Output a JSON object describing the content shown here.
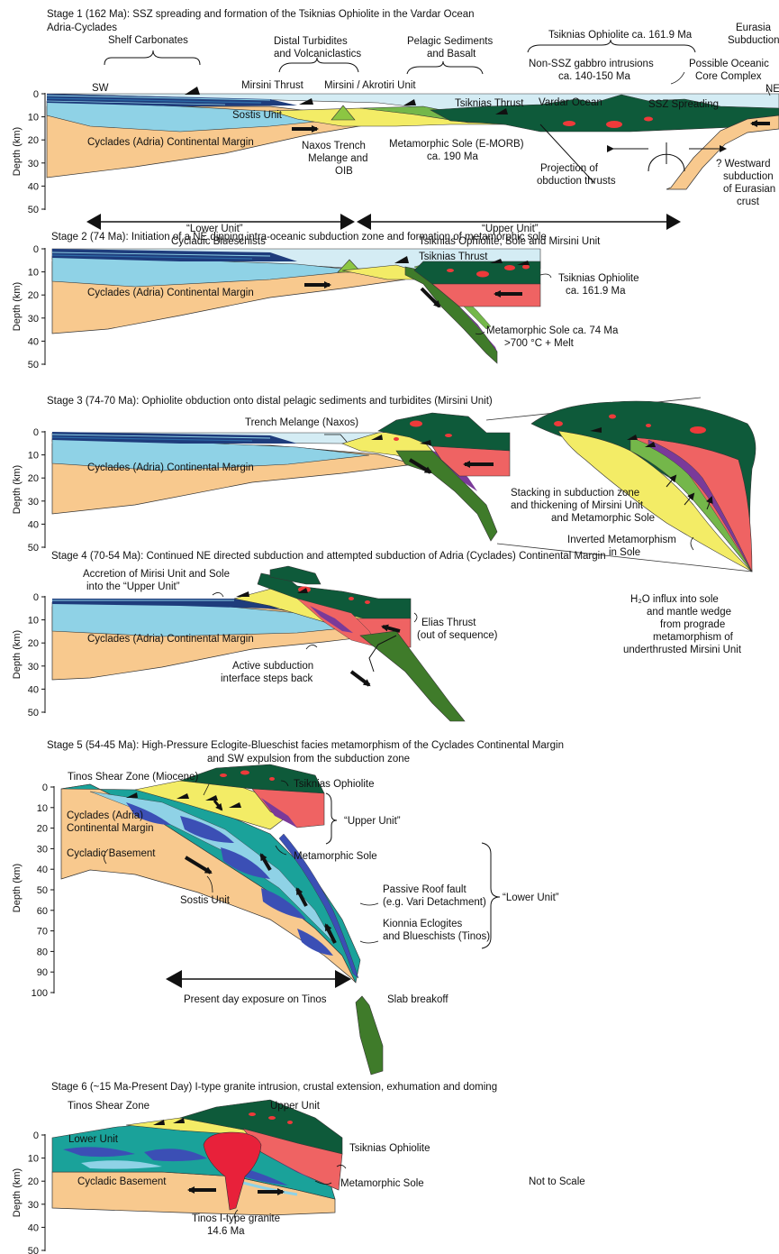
{
  "colors": {
    "ocean": "#d4ecf4",
    "margin": "#f8c98e",
    "shelf_dark": "#1e3c7c",
    "shelf_mid": "#2e6ba6",
    "sostis": "#8fd2e6",
    "turbidite": "#f3ec66",
    "sole": "#7a3a99",
    "ophiolite": "#0e5a3a",
    "mantle": "#ef6363",
    "slab": "#3f7b2a",
    "melange": "#8cc642",
    "green_sed": "#74b74a",
    "teal": "#1aa29a",
    "blueschist": "#3b4fb5",
    "granite": "#ee3a22",
    "magma": "#e8213a"
  },
  "axis": {
    "label": "Depth (km)",
    "ticks_shallow": [
      "0",
      "10",
      "20",
      "30",
      "40",
      "50"
    ],
    "ticks_deep": [
      "0",
      "10",
      "20",
      "30",
      "40",
      "50",
      "60",
      "70",
      "80",
      "90",
      "100"
    ]
  },
  "stage1": {
    "title": "Stage 1 (162 Ma): SSZ spreading and formation of the Tsiknias Ophiolite in the Vardar Ocean",
    "region": "Adria-Cyclades",
    "shelf_carbonates": "Shelf Carbonates",
    "distal_turbidites_1": "Distal Turbidites",
    "distal_turbidites_2": "and Volcaniclastics",
    "pelagic_1": "Pelagic Sediments",
    "pelagic_2": "and Basalt",
    "ophiolite_age": "Tsiknias Ophiolite ca. 161.9 Ma",
    "eurasia_1": "Eurasia",
    "eurasia_2": "Subduction",
    "non_ssz_1": "Non-SSZ gabbro intrusions",
    "non_ssz_2": "ca. 140-150 Ma",
    "possible_1": "Possible Oceanic",
    "possible_2": "Core Complex",
    "sw": "SW",
    "ne": "NE",
    "mirsini_thrust": "Mirsini Thrust",
    "mirsini_akrotiri": "Mirsini / Akrotiri Unit",
    "tsiknias_thrust": "Tsiknias Thrust",
    "vardar": "Vardar Ocean",
    "ssz": "SSZ Spreading",
    "sostis": "Sostis Unit",
    "margin": "Cyclades (Adria) Continental Margin",
    "naxos_1": "Naxos Trench",
    "naxos_2": "Melange and",
    "naxos_3": "OIB",
    "sole_1": "Metamorphic Sole (E-MORB)",
    "sole_2": "ca. 190 Ma",
    "projection_1": "Projection of",
    "projection_2": "obduction thrusts",
    "westward_1": "? Westward",
    "westward_2": "subduction",
    "westward_3": "of Eurasian",
    "westward_4": "crust",
    "lower_1": "“Lower Unit”",
    "lower_2": "Cycladic Blueschists",
    "upper_1": "“Upper Unit”",
    "upper_2": "Tsiknias Ophiolite, Sole and Mirsini Unit"
  },
  "stage2": {
    "title": "Stage 2 (74 Ma): Initiation of a NE dipping intra-oceanic subduction zone and formation of metamorphic sole",
    "tsiknias_thrust": "Tsiknias Thrust",
    "margin": "Cyclades (Adria) Continental Margin",
    "ophiolite_1": "Tsiknias Ophiolite",
    "ophiolite_2": "ca. 161.9 Ma",
    "sole_1": "Metamorphic Sole ca. 74 Ma",
    "sole_2": ">700 °C + Melt"
  },
  "stage3": {
    "title": "Stage 3 (74-70 Ma): Ophiolite obduction onto distal pelagic sediments and turbidites (Mirsini Unit)",
    "melange": "Trench Melange (Naxos)",
    "margin": "Cyclades (Adria) Continental Margin",
    "stacking_1": "Stacking in subduction zone",
    "stacking_2": "and thickening of Mirsini Unit",
    "stacking_3": "and Metamorphic Sole",
    "inverted_1": "Inverted Metamorphism",
    "inverted_2": "in Sole",
    "h2o_1": "H₂O  influx into sole",
    "h2o_2": "and mantle wedge",
    "h2o_3": "from prograde",
    "h2o_4": "metamorphism of",
    "h2o_5": "underthrusted Mirsini Unit"
  },
  "stage4": {
    "title": "Stage 4 (70-54 Ma): Continued NE directed subduction and attempted subduction of Adria (Cyclades) Continental Margin",
    "accretion_1": "Accretion of Mirisi Unit and Sole",
    "accretion_2": "into the “Upper Unit”",
    "elias_1": "Elias Thrust",
    "elias_2": "(out of sequence)",
    "margin": "Cyclades (Adria) Continental Margin",
    "active_1": "Active subduction",
    "active_2": "interface steps back"
  },
  "stage5": {
    "title_1": "Stage 5 (54-45 Ma): High-Pressure Eclogite-Blueschist facies metamorphism of the Cyclades Continental Margin",
    "title_2": "and SW expulsion from the subduction zone",
    "tinos_sz": "Tinos Shear Zone (Miocene)",
    "tsiknias": "Tsiknias Ophiolite",
    "cyclades_1": "Cyclades (Adria)",
    "cyclades_2": "Continental Margin",
    "upper": "“Upper Unit”",
    "sole": "Metamorphic Sole",
    "basement": "Cycladic Basement",
    "passive_1": "Passive Roof fault",
    "passive_2": "(e.g. Vari Detachment)",
    "sostis": "Sostis Unit",
    "lower": "“Lower Unit”",
    "kionnia_1": "Kionnia Eclogites",
    "kionnia_2": "and Blueschists (Tinos)",
    "present": "Present day exposure on Tinos",
    "breakoff": "Slab breakoff"
  },
  "stage6": {
    "title": "Stage 6 (~15 Ma-Present Day) I-type granite intrusion, crustal extension, exhumation and doming",
    "tinos_sz": "Tinos Shear Zone",
    "upper": "Upper Unit",
    "lower": "Lower Unit",
    "tsiknias": "Tsiknias Ophiolite",
    "basement": "Cycladic Basement",
    "sole": "Metamorphic Sole",
    "scale": "Not to Scale",
    "granite_1": "Tinos I-type granite",
    "granite_2": "14.6 Ma"
  }
}
